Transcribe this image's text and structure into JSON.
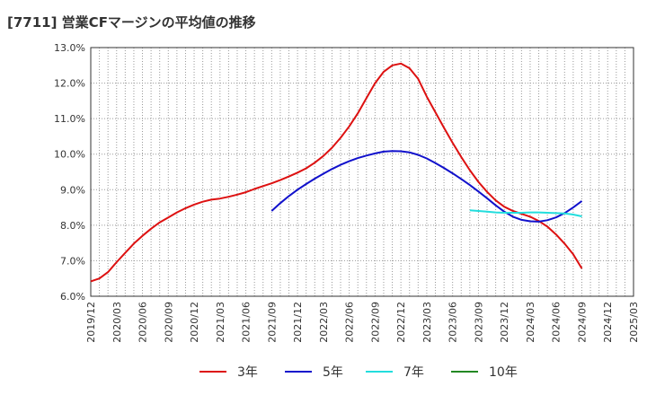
{
  "chart_data": {
    "type": "line",
    "title": "[7711]  営業CFマージンの平均値の推移",
    "xlabel": "",
    "ylabel": "",
    "ylim": [
      6.0,
      13.0
    ],
    "y_ticks": [
      "6.0%",
      "7.0%",
      "8.0%",
      "9.0%",
      "10.0%",
      "11.0%",
      "12.0%",
      "13.0%"
    ],
    "x_ticks": [
      "2019/12",
      "2020/03",
      "2020/06",
      "2020/09",
      "2020/12",
      "2021/03",
      "2021/06",
      "2021/09",
      "2021/12",
      "2022/03",
      "2022/06",
      "2022/09",
      "2022/12",
      "2023/03",
      "2023/06",
      "2023/09",
      "2023/12",
      "2024/03",
      "2024/06",
      "2024/09",
      "2024/12",
      "2025/03"
    ],
    "grid": true,
    "legend_position": "bottom",
    "series": [
      {
        "name": "3年",
        "color": "#dd1111",
        "x": [
          "2019/12",
          "2020/01",
          "2020/02",
          "2020/03",
          "2020/04",
          "2020/05",
          "2020/06",
          "2020/07",
          "2020/08",
          "2020/09",
          "2020/10",
          "2020/11",
          "2020/12",
          "2021/01",
          "2021/02",
          "2021/03",
          "2021/04",
          "2021/05",
          "2021/06",
          "2021/07",
          "2021/08",
          "2021/09",
          "2021/10",
          "2021/11",
          "2021/12",
          "2022/01",
          "2022/02",
          "2022/03",
          "2022/04",
          "2022/05",
          "2022/06",
          "2022/07",
          "2022/08",
          "2022/09",
          "2022/10",
          "2022/11",
          "2022/12",
          "2023/01",
          "2023/02",
          "2023/03",
          "2023/04",
          "2023/05",
          "2023/06",
          "2023/07",
          "2023/08",
          "2023/09",
          "2023/10",
          "2023/11",
          "2023/12",
          "2024/01",
          "2024/02",
          "2024/03",
          "2024/04",
          "2024/05",
          "2024/06",
          "2024/07",
          "2024/08",
          "2024/09"
        ],
        "values": [
          6.42,
          6.5,
          6.68,
          6.96,
          7.22,
          7.48,
          7.7,
          7.9,
          8.08,
          8.22,
          8.36,
          8.48,
          8.58,
          8.66,
          8.72,
          8.75,
          8.8,
          8.86,
          8.93,
          9.02,
          9.1,
          9.18,
          9.27,
          9.37,
          9.48,
          9.6,
          9.76,
          9.95,
          10.18,
          10.46,
          10.78,
          11.15,
          11.58,
          12.0,
          12.32,
          12.5,
          12.55,
          12.42,
          12.12,
          11.62,
          11.18,
          10.74,
          10.32,
          9.92,
          9.55,
          9.22,
          8.94,
          8.7,
          8.52,
          8.4,
          8.32,
          8.24,
          8.12,
          7.96,
          7.74,
          7.48,
          7.18,
          6.78
        ]
      },
      {
        "name": "5年",
        "color": "#1111cc",
        "x": [
          "2021/09",
          "2021/10",
          "2021/11",
          "2021/12",
          "2022/01",
          "2022/02",
          "2022/03",
          "2022/04",
          "2022/05",
          "2022/06",
          "2022/07",
          "2022/08",
          "2022/09",
          "2022/10",
          "2022/11",
          "2022/12",
          "2023/01",
          "2023/02",
          "2023/03",
          "2023/04",
          "2023/05",
          "2023/06",
          "2023/07",
          "2023/08",
          "2023/09",
          "2023/10",
          "2023/11",
          "2023/12",
          "2024/01",
          "2024/02",
          "2024/03",
          "2024/04",
          "2024/05",
          "2024/06",
          "2024/07",
          "2024/08",
          "2024/09"
        ],
        "values": [
          8.4,
          8.62,
          8.82,
          9.0,
          9.16,
          9.31,
          9.45,
          9.58,
          9.7,
          9.8,
          9.89,
          9.96,
          10.02,
          10.07,
          10.09,
          10.08,
          10.05,
          9.98,
          9.88,
          9.75,
          9.61,
          9.46,
          9.3,
          9.13,
          8.95,
          8.76,
          8.56,
          8.38,
          8.24,
          8.15,
          8.11,
          8.1,
          8.14,
          8.22,
          8.34,
          8.5,
          8.68
        ]
      },
      {
        "name": "7年",
        "color": "#22dddd",
        "x": [
          "2023/08",
          "2023/09",
          "2023/10",
          "2023/11",
          "2023/12",
          "2024/01",
          "2024/02",
          "2024/03",
          "2024/04",
          "2024/05",
          "2024/06",
          "2024/07",
          "2024/08",
          "2024/09"
        ],
        "values": [
          8.42,
          8.4,
          8.38,
          8.36,
          8.35,
          8.35,
          8.35,
          8.36,
          8.36,
          8.35,
          8.34,
          8.33,
          8.3,
          8.25
        ]
      },
      {
        "name": "10年",
        "color": "#228822",
        "x": [],
        "values": []
      }
    ]
  }
}
